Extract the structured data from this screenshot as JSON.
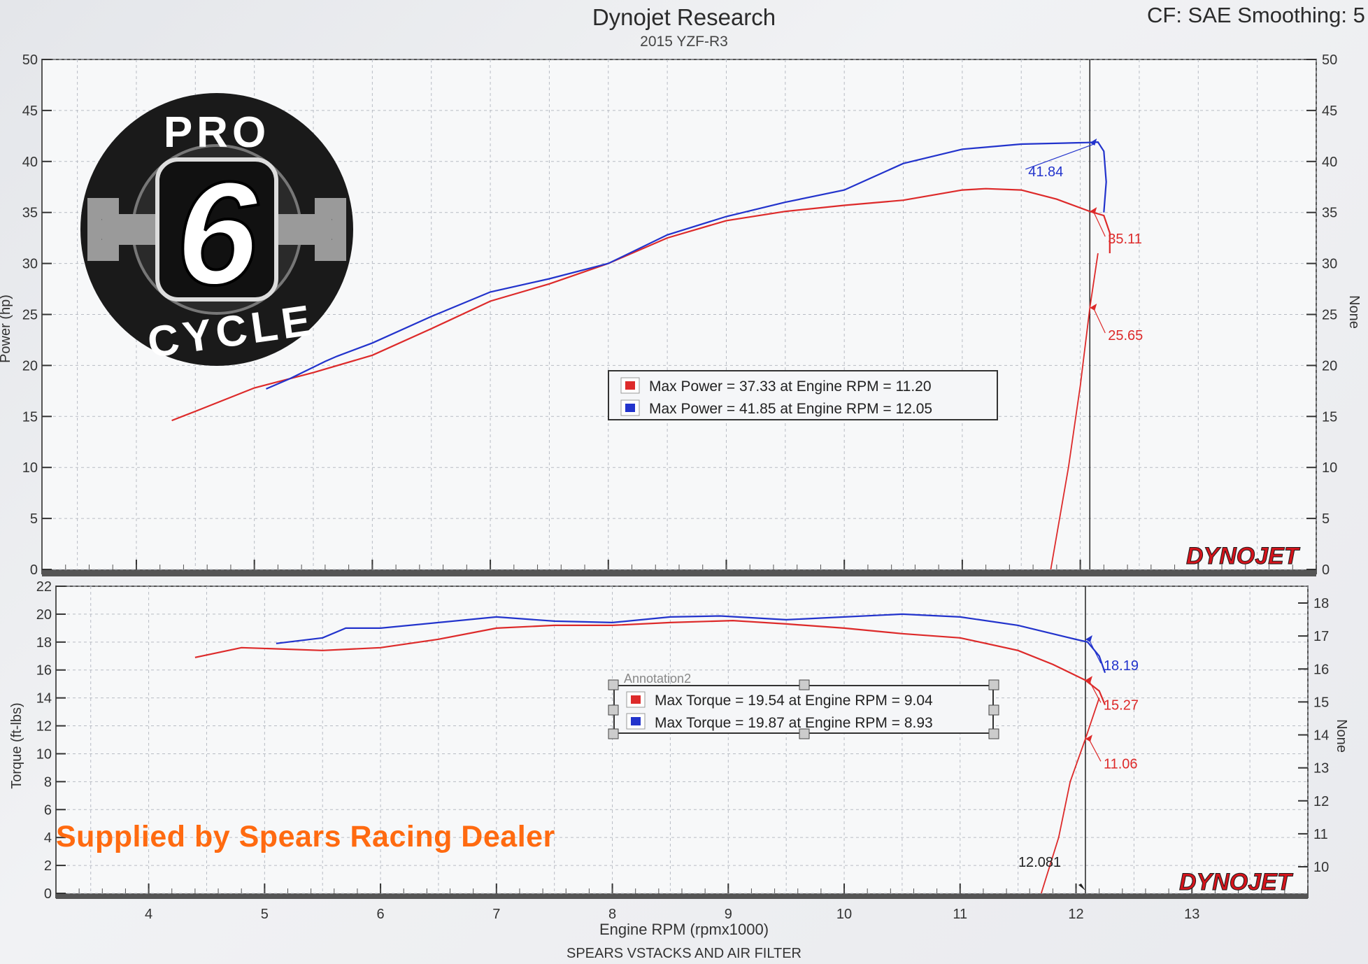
{
  "header": {
    "title": "Dynojet Research",
    "subtitle": "2015 YZF-R3",
    "right_text": "CF: SAE Smoothing: 5"
  },
  "footer": {
    "note": "SPEARS VSTACKS AND AIR FILTER",
    "supplied_text": "Supplied by Spears Racing Dealer",
    "brand": "DYNOJET"
  },
  "logo": {
    "top_word": "PRO",
    "digit": "6",
    "bottom_word": "CYCLE"
  },
  "colors": {
    "run_red": "#dd2a2a",
    "run_blue": "#2233cc",
    "supplied_text": "#ff6a10",
    "brand": "#d4141c"
  },
  "chart_data": [
    {
      "type": "line",
      "ylabel": "Power (hp)",
      "ylabel_right": "None",
      "xlabel": "Engine RPM (rpmx1000)",
      "xlim": [
        3.2,
        14.0
      ],
      "ylim": [
        0,
        50
      ],
      "x_ticks": [
        "4",
        "5",
        "6",
        "7",
        "8",
        "9",
        "10",
        "11",
        "12",
        "13"
      ],
      "y_ticks_left": [
        "0",
        "5",
        "10",
        "15",
        "20",
        "25",
        "30",
        "35",
        "40",
        "45",
        "50"
      ],
      "y_ticks_right": [
        "0",
        "5",
        "10",
        "15",
        "20",
        "25",
        "30",
        "35",
        "40",
        "45",
        "50"
      ],
      "grid": true,
      "cursor_rpm": 12.081,
      "series": [
        {
          "color": "#dd2a2a",
          "points": [
            [
              4.3,
              14.6
            ],
            [
              4.5,
              15.5
            ],
            [
              5.0,
              17.8
            ],
            [
              5.5,
              19.3
            ],
            [
              6.0,
              21.0
            ],
            [
              6.5,
              23.6
            ],
            [
              7.0,
              26.3
            ],
            [
              7.5,
              28.0
            ],
            [
              8.0,
              30.0
            ],
            [
              8.5,
              32.5
            ],
            [
              9.0,
              34.2
            ],
            [
              9.5,
              35.1
            ],
            [
              10.0,
              35.7
            ],
            [
              10.5,
              36.2
            ],
            [
              11.0,
              37.2
            ],
            [
              11.2,
              37.33
            ],
            [
              11.5,
              37.2
            ],
            [
              11.8,
              36.3
            ],
            [
              12.08,
              35.11
            ],
            [
              12.2,
              34.7
            ],
            [
              12.25,
              33.0
            ],
            [
              12.25,
              31.0
            ]
          ],
          "cursor_label": "35.11",
          "cursor_label_2": "25.65",
          "decel_points": [
            [
              11.75,
              0
            ],
            [
              11.9,
              10
            ],
            [
              12.0,
              18
            ],
            [
              12.081,
              25.65
            ],
            [
              12.15,
              31
            ]
          ]
        },
        {
          "color": "#2233cc",
          "points": [
            [
              5.1,
              17.7
            ],
            [
              5.3,
              18.7
            ],
            [
              5.6,
              20.4
            ],
            [
              5.7,
              20.9
            ],
            [
              6.0,
              22.2
            ],
            [
              6.5,
              24.8
            ],
            [
              7.0,
              27.2
            ],
            [
              7.5,
              28.5
            ],
            [
              8.0,
              30.0
            ],
            [
              8.5,
              32.8
            ],
            [
              9.0,
              34.6
            ],
            [
              9.5,
              36.0
            ],
            [
              10.0,
              37.2
            ],
            [
              10.5,
              39.8
            ],
            [
              11.0,
              41.2
            ],
            [
              11.5,
              41.7
            ],
            [
              12.0,
              41.84
            ],
            [
              12.05,
              41.85
            ],
            [
              12.15,
              41.9
            ],
            [
              12.2,
              41.0
            ],
            [
              12.22,
              38.0
            ],
            [
              12.2,
              35.0
            ]
          ],
          "cursor_label": "41.84"
        }
      ],
      "legend": [
        {
          "label": "Max Power = 37.33 at Engine RPM = 11.20",
          "color": "#dd2a2a"
        },
        {
          "label": "Max Power = 41.85 at Engine RPM = 12.05",
          "color": "#2233cc"
        }
      ]
    },
    {
      "type": "line",
      "ylabel": "Torque (ft-lbs)",
      "ylabel_right": "None",
      "xlabel": "Engine RPM (rpmx1000)",
      "xlim": [
        3.2,
        14.0
      ],
      "ylim": [
        0,
        22
      ],
      "x_ticks": [
        "4",
        "5",
        "6",
        "7",
        "8",
        "9",
        "10",
        "11",
        "12",
        "13"
      ],
      "y_ticks_left": [
        "0",
        "2",
        "4",
        "6",
        "8",
        "10",
        "12",
        "14",
        "16",
        "18",
        "20",
        "22"
      ],
      "y_ticks_right": [
        "10",
        "11",
        "12",
        "13",
        "14",
        "15",
        "16",
        "17",
        "18"
      ],
      "grid": true,
      "cursor_rpm": 12.081,
      "cursor_text": "12.081",
      "series": [
        {
          "color": "#dd2a2a",
          "points": [
            [
              4.4,
              16.9
            ],
            [
              4.8,
              17.6
            ],
            [
              5.5,
              17.4
            ],
            [
              6.0,
              17.6
            ],
            [
              6.5,
              18.2
            ],
            [
              7.0,
              19.0
            ],
            [
              7.5,
              19.2
            ],
            [
              8.0,
              19.2
            ],
            [
              8.5,
              19.4
            ],
            [
              9.04,
              19.54
            ],
            [
              9.5,
              19.3
            ],
            [
              10.0,
              19.0
            ],
            [
              10.5,
              18.6
            ],
            [
              11.0,
              18.3
            ],
            [
              11.5,
              17.4
            ],
            [
              11.8,
              16.4
            ],
            [
              12.08,
              15.27
            ],
            [
              12.2,
              14.5
            ],
            [
              12.25,
              13.5
            ]
          ],
          "cursor_label": "15.27",
          "cursor_label_2": "11.06",
          "decel_points": [
            [
              11.7,
              0
            ],
            [
              11.85,
              4
            ],
            [
              11.95,
              8
            ],
            [
              12.081,
              11.06
            ],
            [
              12.2,
              14.0
            ]
          ]
        },
        {
          "color": "#2233cc",
          "points": [
            [
              5.1,
              17.9
            ],
            [
              5.5,
              18.3
            ],
            [
              5.7,
              19.0
            ],
            [
              6.0,
              19.0
            ],
            [
              6.5,
              19.4
            ],
            [
              7.0,
              19.8
            ],
            [
              7.5,
              19.5
            ],
            [
              8.0,
              19.4
            ],
            [
              8.5,
              19.8
            ],
            [
              8.93,
              19.87
            ],
            [
              9.5,
              19.6
            ],
            [
              10.0,
              19.8
            ],
            [
              10.5,
              20.0
            ],
            [
              11.0,
              19.8
            ],
            [
              11.5,
              19.2
            ],
            [
              12.0,
              18.19
            ],
            [
              12.1,
              18.0
            ],
            [
              12.2,
              17.0
            ],
            [
              12.25,
              15.8
            ]
          ],
          "cursor_label": "18.19"
        }
      ],
      "annotation_title": "Annotation2",
      "legend": [
        {
          "label": "Max Torque = 19.54 at Engine RPM = 9.04",
          "color": "#dd2a2a"
        },
        {
          "label": "Max Torque = 19.87 at Engine RPM = 8.93",
          "color": "#2233cc"
        }
      ]
    }
  ]
}
